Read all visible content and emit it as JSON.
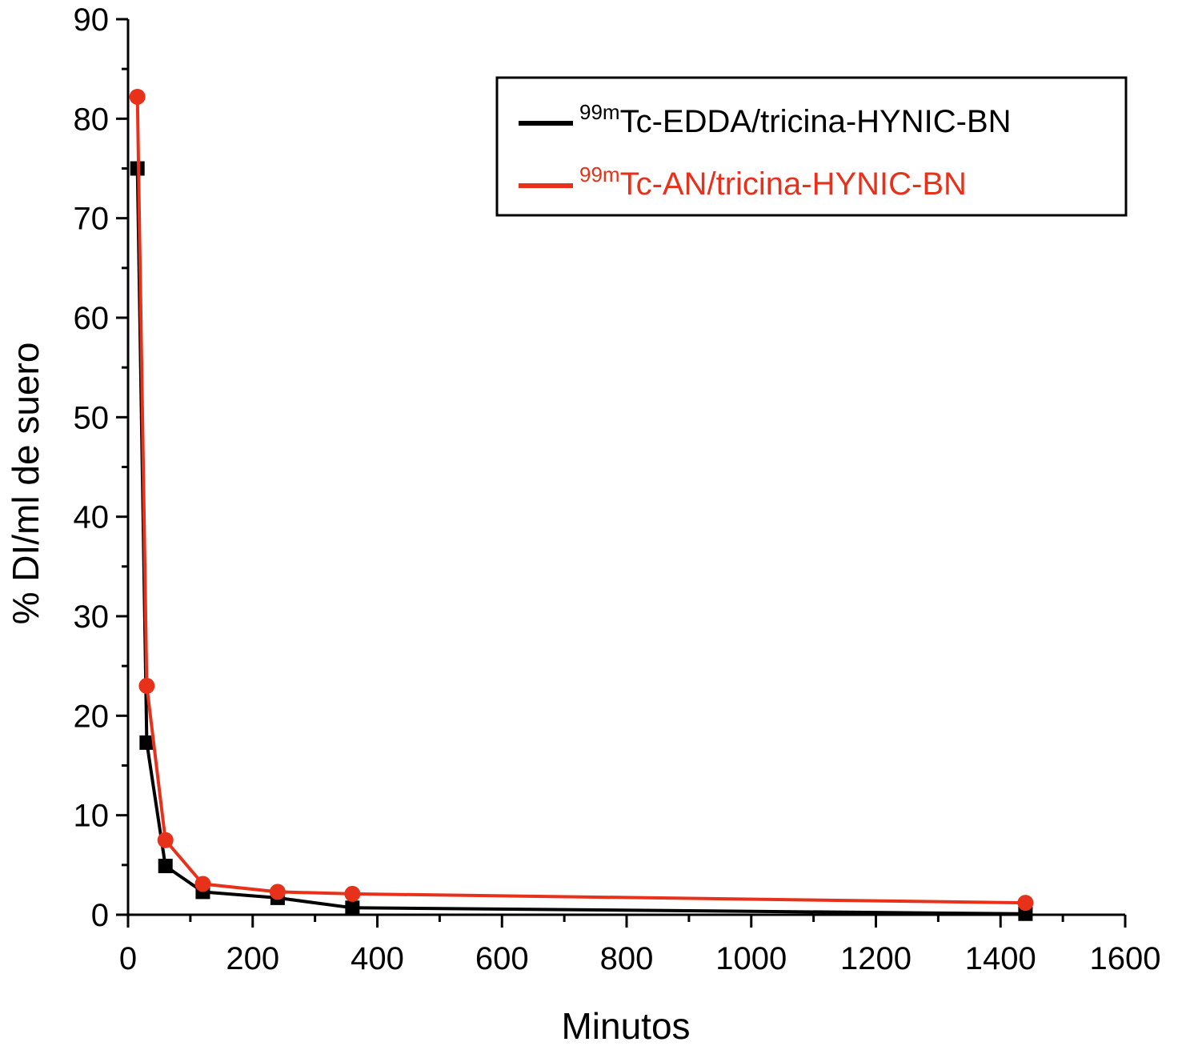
{
  "chart_data": {
    "type": "line",
    "title": "",
    "xlabel": "Minutos",
    "ylabel": "% DI/ml de suero",
    "xlim": [
      0,
      1600
    ],
    "ylim": [
      0,
      90
    ],
    "xticks": [
      0,
      200,
      400,
      600,
      800,
      1000,
      1200,
      1400,
      1600
    ],
    "yticks": [
      0,
      10,
      20,
      30,
      40,
      50,
      60,
      70,
      80,
      90
    ],
    "x_tick_labels": [
      "0",
      "200",
      "400",
      "600",
      "800",
      "1000",
      "1200",
      "1400",
      "1600"
    ],
    "y_tick_labels": [
      "0",
      "10",
      "20",
      "30",
      "40",
      "50",
      "60",
      "70",
      "80",
      "90"
    ],
    "grid": false,
    "legend_position": "top-right",
    "series": [
      {
        "name_sup": "99m",
        "name_main": "Tc-EDDA/tricina-HYNIC-BN",
        "color": "#000000",
        "marker": "square",
        "x": [
          15,
          30,
          60,
          120,
          240,
          360,
          1440
        ],
        "y": [
          75,
          17.3,
          4.9,
          2.3,
          1.7,
          0.7,
          0.1
        ]
      },
      {
        "name_sup": "99m",
        "name_main": "Tc-AN/tricina-HYNIC-BN",
        "color": "#e8311a",
        "marker": "circle",
        "x": [
          15,
          30,
          60,
          120,
          240,
          360,
          1440
        ],
        "y": [
          82.2,
          23.0,
          7.5,
          3.1,
          2.3,
          2.1,
          1.2
        ]
      }
    ]
  }
}
